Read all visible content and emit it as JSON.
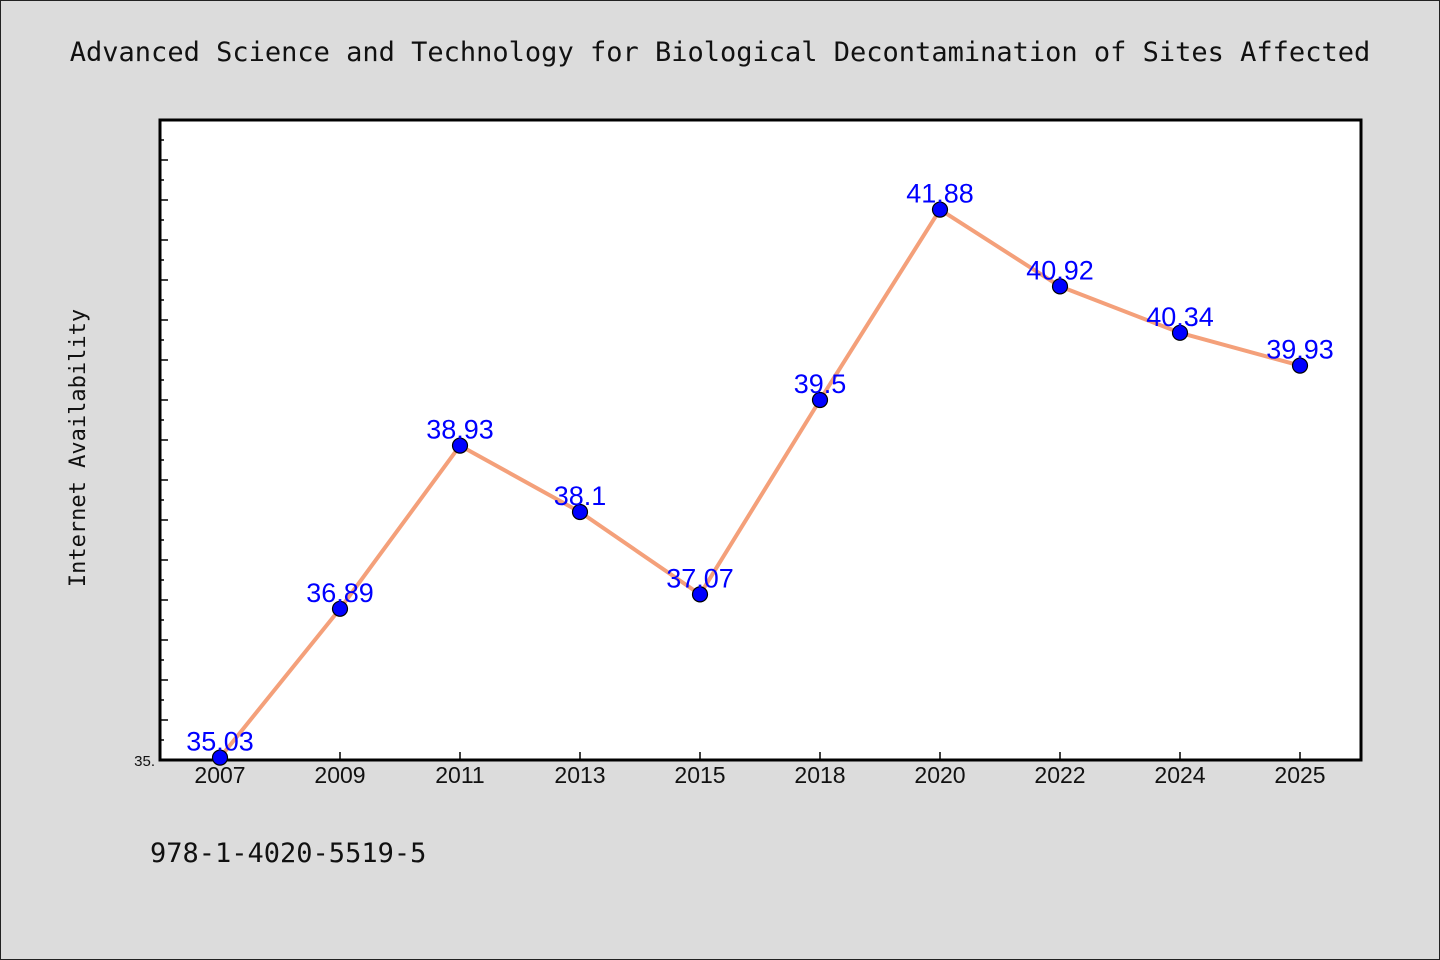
{
  "chart_data": {
    "type": "line",
    "title": "Advanced Science and Technology for Biological Decontamination of Sites Affected",
    "xlabel": "",
    "ylabel": "Internet Availability",
    "categories": [
      "2007",
      "2009",
      "2011",
      "2013",
      "2015",
      "2018",
      "2020",
      "2022",
      "2024",
      "2025"
    ],
    "series": [
      {
        "values": [
          35.03,
          36.89,
          38.93,
          38.1,
          37.07,
          39.5,
          41.88,
          40.92,
          40.34,
          39.93
        ],
        "labels": [
          "35.03",
          "36.89",
          "38.93",
          "38.1",
          "37.07",
          "39.5",
          "41.88",
          "40.92",
          "40.34",
          "39.93"
        ]
      }
    ],
    "ylim": [
      35.0,
      43.0
    ],
    "y_tick_labels": [
      "35."
    ],
    "grid": false,
    "legend": "none",
    "colors": {
      "line": "#f4a07a",
      "marker": "#0000ff",
      "data_label": "#0000ff",
      "plot_bg": "#ffffff",
      "page_bg": "#dcdcdc"
    }
  },
  "footer": {
    "isbn": "978-1-4020-5519-5"
  }
}
